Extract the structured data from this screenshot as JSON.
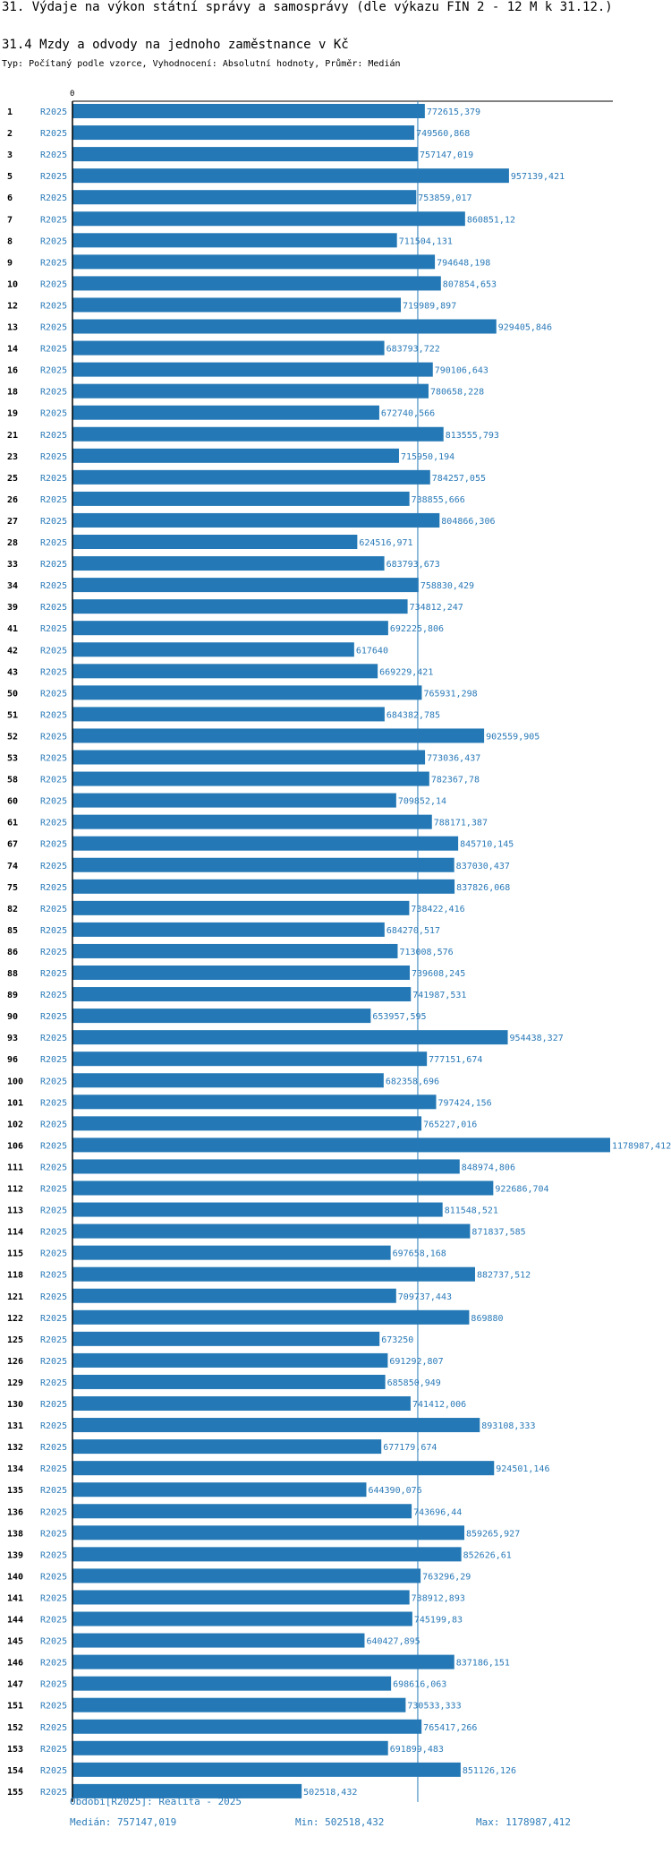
{
  "header": {
    "title": "31. Výdaje na výkon státní správy a samosprávy (dle výkazu FIN 2 - 12 M k 31.12.)",
    "subtitle": "31.4 Mzdy a odvody na jednoho zaměstnance v Kč",
    "description": "Typ: Počítaný podle vzorce, Vyhodnocení: Absolutní hodnoty, Průměr: Medián"
  },
  "colors": {
    "bar": "#2378b5",
    "label": "#2a7ab8",
    "axis": "#000000",
    "median_line": "#2a7ab8"
  },
  "chart_data": {
    "type": "bar",
    "orientation": "horizontal",
    "axis_zero_label": "0",
    "series_label": "R2025",
    "median": 757147.019,
    "x_min": 0,
    "x_max": 1178987.412,
    "categories": [
      "1",
      "2",
      "3",
      "5",
      "6",
      "7",
      "8",
      "9",
      "10",
      "12",
      "13",
      "14",
      "16",
      "18",
      "19",
      "21",
      "23",
      "25",
      "26",
      "27",
      "28",
      "33",
      "34",
      "39",
      "41",
      "42",
      "43",
      "50",
      "51",
      "52",
      "53",
      "58",
      "60",
      "61",
      "67",
      "74",
      "75",
      "82",
      "85",
      "86",
      "88",
      "89",
      "90",
      "93",
      "96",
      "100",
      "101",
      "102",
      "106",
      "111",
      "112",
      "113",
      "114",
      "115",
      "118",
      "121",
      "122",
      "125",
      "126",
      "129",
      "130",
      "131",
      "132",
      "134",
      "135",
      "136",
      "138",
      "139",
      "140",
      "141",
      "144",
      "145",
      "146",
      "147",
      "151",
      "152",
      "153",
      "154",
      "155"
    ],
    "values": [
      772615.379,
      749560.868,
      757147.019,
      957139.421,
      753859.017,
      860851.12,
      711504.131,
      794648.198,
      807854.653,
      719989.897,
      929405.846,
      683793.722,
      790106.643,
      780658.228,
      672740.566,
      813555.793,
      715950.194,
      784257.055,
      738855.666,
      804866.306,
      624516.971,
      683793.673,
      758830.429,
      734812.247,
      692225.806,
      617640,
      669229.421,
      765931.298,
      684382.785,
      902559.905,
      773036.437,
      782367.78,
      709852.14,
      788171.387,
      845710.145,
      837030.437,
      837826.068,
      738422.416,
      684270.517,
      713008.576,
      739608.245,
      741987.531,
      653957.595,
      954438.327,
      777151.674,
      682358.696,
      797424.156,
      765227.016,
      1178987.412,
      848974.806,
      922686.704,
      811548.521,
      871837.585,
      697658.168,
      882737.512,
      709737.443,
      869880,
      673250,
      691292.807,
      685850.949,
      741412.006,
      893108.333,
      677179.674,
      924501.146,
      644390.076,
      743696.44,
      859265.927,
      852626.61,
      763296.29,
      738912.893,
      745199.83,
      640427.895,
      837186.151,
      698616.063,
      730533.333,
      765417.266,
      691899.483,
      851126.126,
      502518.432
    ],
    "value_labels": [
      "772615,379",
      "749560,868",
      "757147,019",
      "957139,421",
      "753859,017",
      "860851,12",
      "711504,131",
      "794648,198",
      "807854,653",
      "719989,897",
      "929405,846",
      "683793,722",
      "790106,643",
      "780658,228",
      "672740,566",
      "813555,793",
      "715950,194",
      "784257,055",
      "738855,666",
      "804866,306",
      "624516,971",
      "683793,673",
      "758830,429",
      "734812,247",
      "692225,806",
      "617640",
      "669229,421",
      "765931,298",
      "684382,785",
      "902559,905",
      "773036,437",
      "782367,78",
      "709852,14",
      "788171,387",
      "845710,145",
      "837030,437",
      "837826,068",
      "738422,416",
      "684270,517",
      "713008,576",
      "739608,245",
      "741987,531",
      "653957,595",
      "954438,327",
      "777151,674",
      "682358,696",
      "797424,156",
      "765227,016",
      "1178987,412",
      "848974,806",
      "922686,704",
      "811548,521",
      "871837,585",
      "697658,168",
      "882737,512",
      "709737,443",
      "869880",
      "673250",
      "691292,807",
      "685850,949",
      "741412,006",
      "893108,333",
      "677179,674",
      "924501,146",
      "644390,076",
      "743696,44",
      "859265,927",
      "852626,61",
      "763296,29",
      "738912,893",
      "745199,83",
      "640427,895",
      "837186,151",
      "698616,063",
      "730533,333",
      "765417,266",
      "691899,483",
      "851126,126",
      "502518,432"
    ]
  },
  "footer": {
    "period": "Období[R2025]: Realita - 2025",
    "median": "Medián: 757147,019",
    "min": "Min: 502518,432",
    "max": "Max: 1178987,412"
  }
}
